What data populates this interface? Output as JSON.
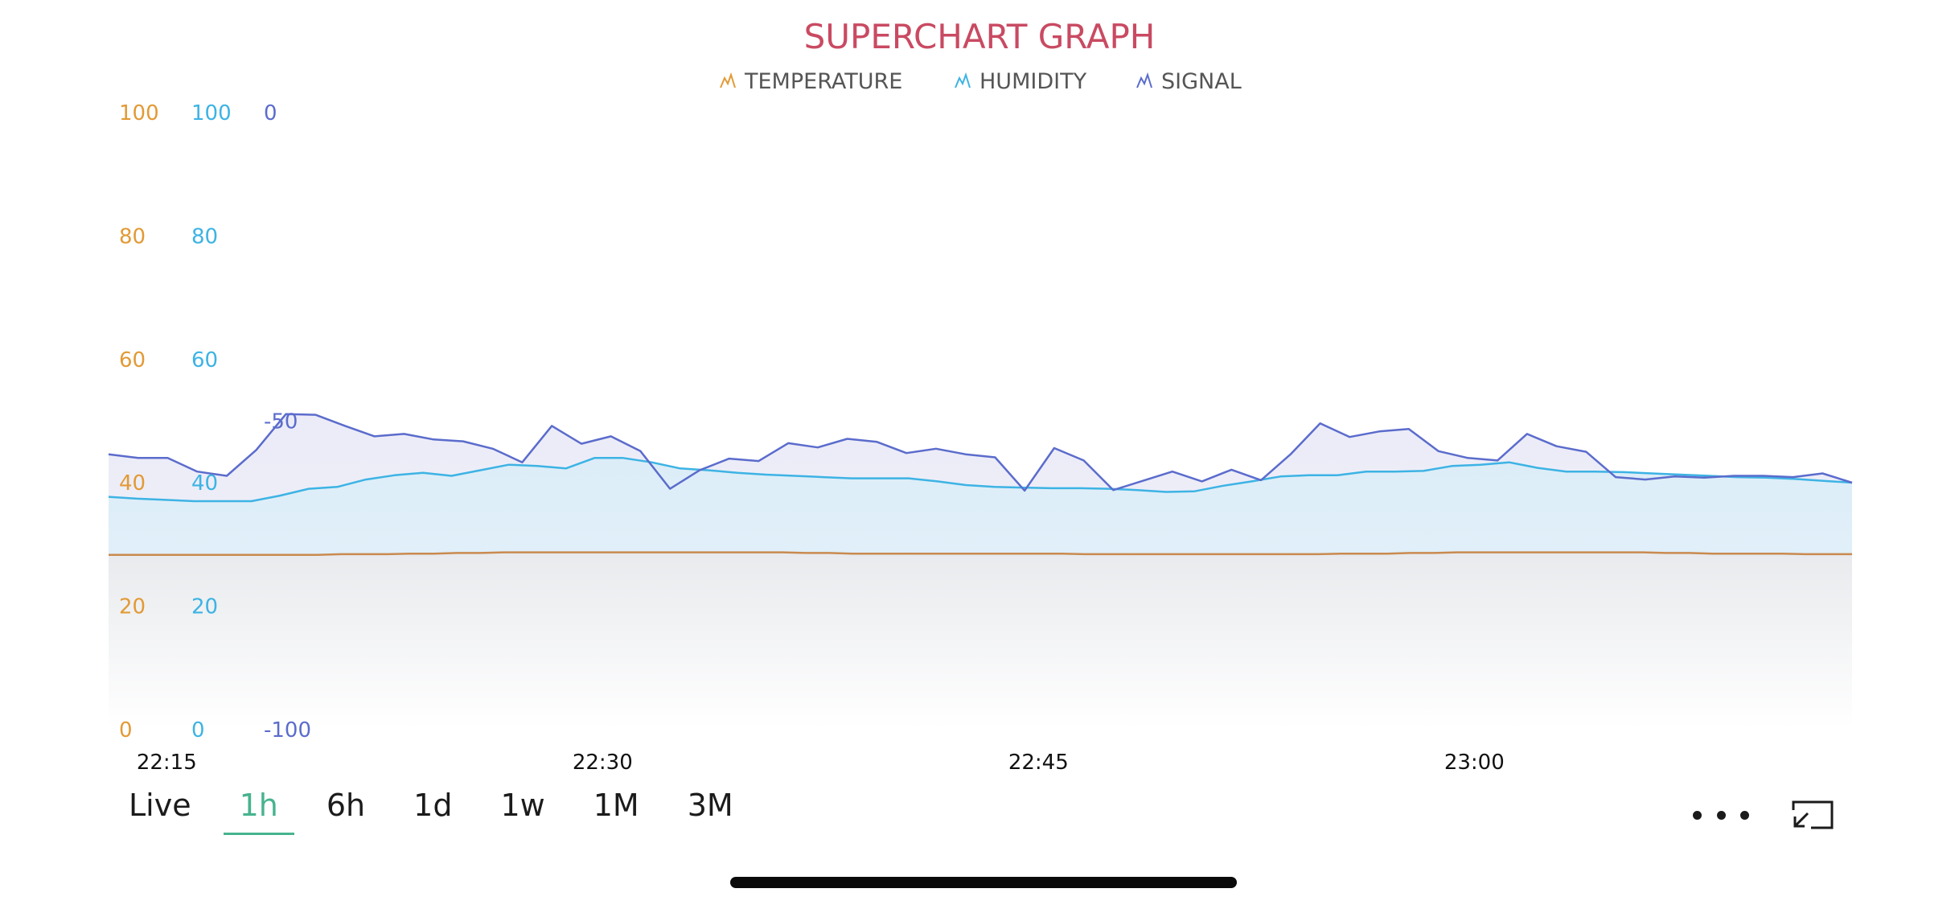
{
  "chart_data": {
    "type": "area",
    "title": "SUPERCHART GRAPH",
    "x_ticks": [
      "22:15",
      "22:30",
      "22:45",
      "23:00"
    ],
    "x_range": [
      "22:13",
      "23:13"
    ],
    "legend_placement": "top-center",
    "grid": false,
    "axes": [
      {
        "name": "temperature-axis",
        "color": "#e29a36",
        "range": [
          0,
          100
        ],
        "ticks": [
          0,
          20,
          40,
          60,
          80,
          100
        ]
      },
      {
        "name": "humidity-axis",
        "color": "#3db3e4",
        "range": [
          0,
          100
        ],
        "ticks": [
          0,
          20,
          40,
          60,
          80,
          100
        ]
      },
      {
        "name": "signal-axis",
        "color": "#5b6ccc",
        "range": [
          -100,
          0
        ],
        "ticks": [
          -100,
          -50,
          0
        ]
      }
    ],
    "series": [
      {
        "name": "TEMPERATURE",
        "color": "#c98a4f",
        "legend_icon_color": "#e29a36",
        "axis": 0,
        "values": [
          28.2,
          28.2,
          28.2,
          28.2,
          28.2,
          28.2,
          28.2,
          28.2,
          28.2,
          28.2,
          28.3,
          28.3,
          28.3,
          28.4,
          28.4,
          28.5,
          28.5,
          28.6,
          28.6,
          28.6,
          28.6,
          28.6,
          28.6,
          28.6,
          28.6,
          28.6,
          28.6,
          28.6,
          28.6,
          28.6,
          28.5,
          28.5,
          28.4,
          28.4,
          28.4,
          28.4,
          28.4,
          28.4,
          28.4,
          28.4,
          28.4,
          28.4,
          28.3,
          28.3,
          28.3,
          28.3,
          28.3,
          28.3,
          28.3,
          28.3,
          28.3,
          28.3,
          28.3,
          28.4,
          28.4,
          28.4,
          28.5,
          28.5,
          28.6,
          28.6,
          28.6,
          28.6,
          28.6,
          28.6,
          28.6,
          28.6,
          28.6,
          28.5,
          28.5,
          28.4,
          28.4,
          28.4,
          28.4,
          28.3,
          28.3,
          28.3
        ]
      },
      {
        "name": "HUMIDITY",
        "color": "#3db3e4",
        "axis": 1,
        "values": [
          37.6,
          37.3,
          37.1,
          36.9,
          36.9,
          36.9,
          37.8,
          38.9,
          39.2,
          40.4,
          41.1,
          41.5,
          41.0,
          41.9,
          42.8,
          42.6,
          42.2,
          43.9,
          43.9,
          43.2,
          42.2,
          41.9,
          41.5,
          41.2,
          41.0,
          40.8,
          40.6,
          40.6,
          40.6,
          40.1,
          39.5,
          39.2,
          39.1,
          39.0,
          39.0,
          38.9,
          38.7,
          38.4,
          38.5,
          39.4,
          40.1,
          40.9,
          41.1,
          41.1,
          41.7,
          41.7,
          41.8,
          42.6,
          42.8,
          43.2,
          42.3,
          41.7,
          41.7,
          41.6,
          41.4,
          41.2,
          41.0,
          40.8,
          40.7,
          40.5,
          40.2,
          39.9
        ]
      },
      {
        "name": "SIGNAL",
        "color": "#5b6ccc",
        "axis": 2,
        "values": [
          -55.5,
          -56.1,
          -56.1,
          -58.3,
          -59.0,
          -54.8,
          -49.0,
          -49.1,
          -50.9,
          -52.6,
          -52.2,
          -53.1,
          -53.4,
          -54.6,
          -56.8,
          -50.9,
          -53.8,
          -52.6,
          -55.0,
          -61.1,
          -58.1,
          -56.2,
          -56.6,
          -53.7,
          -54.4,
          -53.0,
          -53.5,
          -55.3,
          -54.6,
          -55.5,
          -56.0,
          -61.4,
          -54.5,
          -56.5,
          -61.3,
          -59.8,
          -58.3,
          -59.9,
          -58.0,
          -59.7,
          -55.5,
          -50.5,
          -52.7,
          -51.8,
          -51.4,
          -55.0,
          -56.1,
          -56.5,
          -52.2,
          -54.2,
          -55.1,
          -59.2,
          -59.6,
          -59.1,
          -59.3,
          -59.0,
          -59.0,
          -59.2,
          -58.6,
          -60.1
        ]
      }
    ]
  },
  "time_ranges": [
    {
      "key": "live",
      "label": "Live"
    },
    {
      "key": "1h",
      "label": "1h"
    },
    {
      "key": "6h",
      "label": "6h"
    },
    {
      "key": "1d",
      "label": "1d"
    },
    {
      "key": "1w",
      "label": "1w"
    },
    {
      "key": "1M",
      "label": "1M"
    },
    {
      "key": "3M",
      "label": "3M"
    }
  ],
  "selected_range": "1h",
  "accent_color": "#47b38f",
  "title_color": "#c94a62",
  "icons": {
    "more": "more-horizontal-icon",
    "expand": "expand-icon"
  }
}
